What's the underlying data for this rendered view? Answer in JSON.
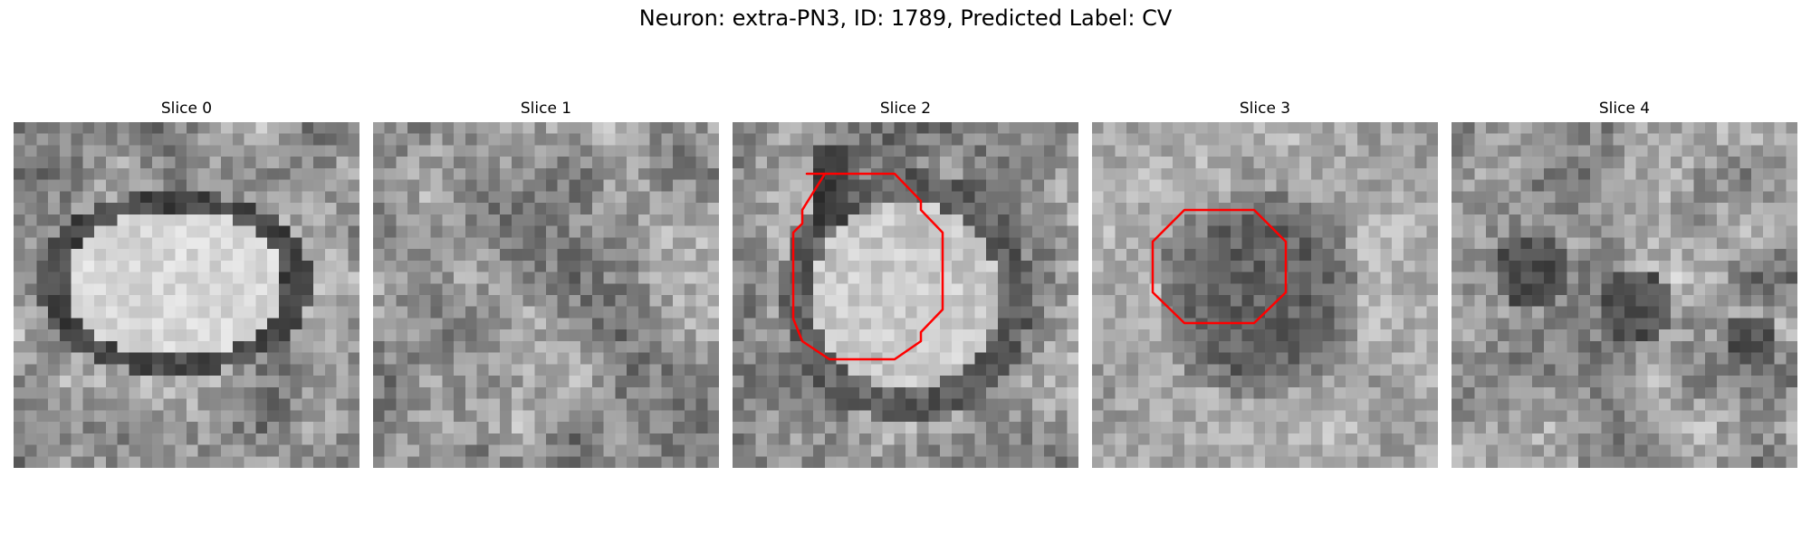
{
  "figure": {
    "title": "Neuron: extra-PN3, ID: 1789, Predicted Label: CV",
    "colors": {
      "background": "#ffffff",
      "outline": "#ff0000",
      "colormap": "grayscale"
    },
    "panels": [
      {
        "title": "Slice 0",
        "seed": 11,
        "outline": false,
        "scene": "bright-ellipse-ring"
      },
      {
        "title": "Slice 1",
        "seed": 23,
        "outline": false,
        "scene": "noise"
      },
      {
        "title": "Slice 2",
        "seed": 37,
        "outline": true,
        "scene": "bright-circle-dark-ring"
      },
      {
        "title": "Slice 3",
        "seed": 53,
        "outline": true,
        "scene": "dark-circle"
      },
      {
        "title": "Slice 4",
        "seed": 71,
        "outline": false,
        "scene": "dark-patches"
      }
    ]
  }
}
